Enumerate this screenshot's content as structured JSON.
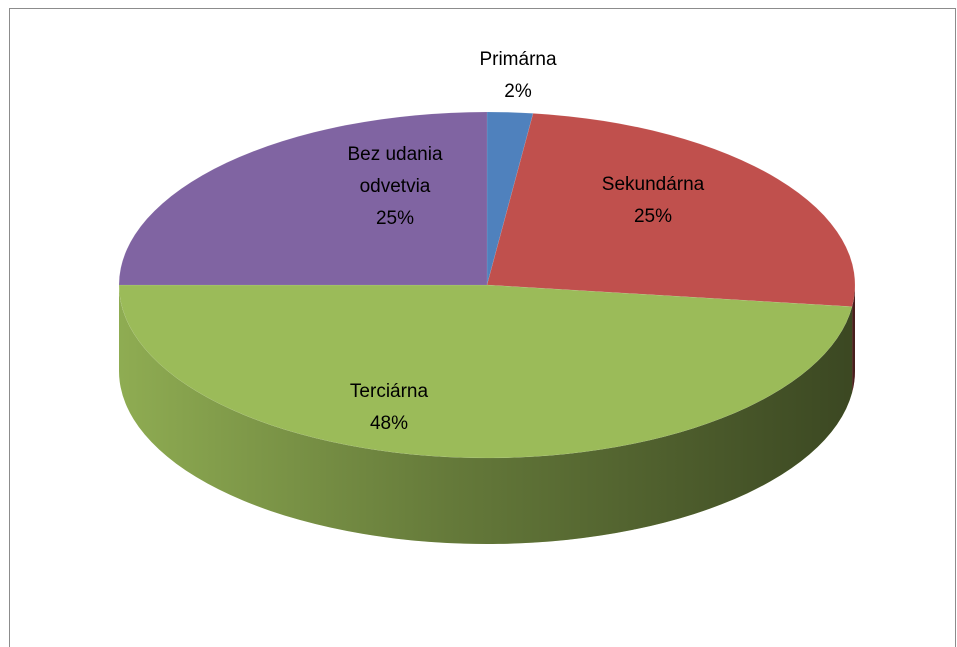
{
  "chart_data": {
    "type": "pie",
    "three_d": true,
    "categories": [
      "Primárna",
      "Sekundárna",
      "Terciárna",
      "Bez udania odvetvia"
    ],
    "values": [
      2,
      25,
      48,
      25
    ],
    "value_labels": [
      "2%",
      "25%",
      "48%",
      "25%"
    ],
    "colors": [
      "#4f81bd",
      "#c0504d",
      "#9bbb59",
      "#8064a2"
    ]
  }
}
